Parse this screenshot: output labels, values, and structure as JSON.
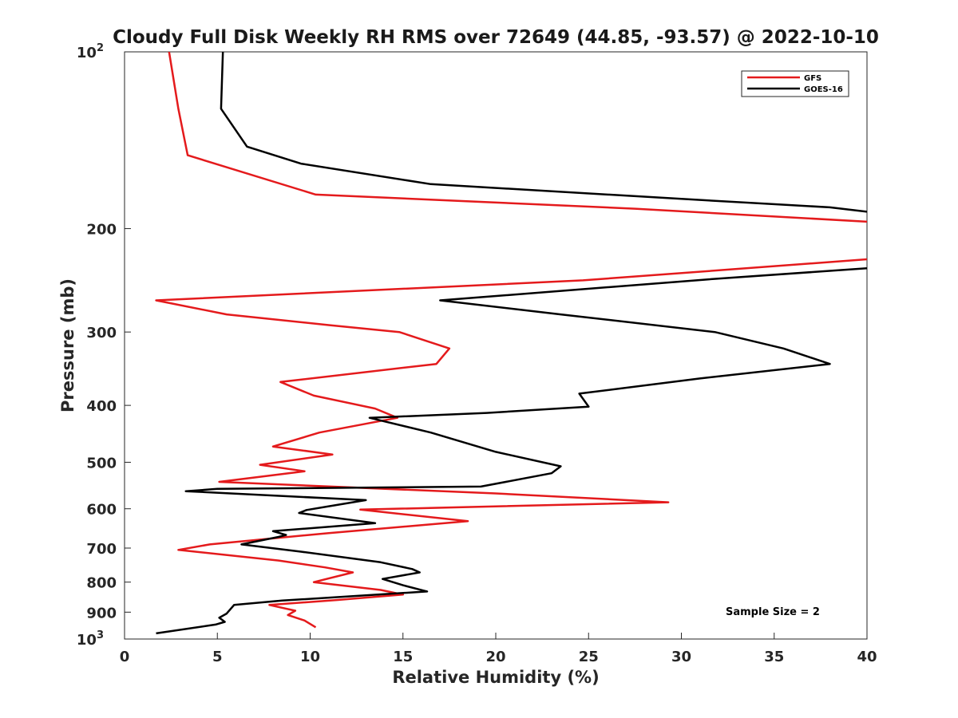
{
  "chart_data": {
    "type": "line",
    "title": "Cloudy Full Disk Weekly RH RMS over 72649 (44.85, -93.57) @ 2022-10-10",
    "xlabel": "Relative Humidity (%)",
    "ylabel": "Pressure (mb)",
    "xlim": [
      0,
      40
    ],
    "ylim": [
      100,
      1000
    ],
    "y_scale": "log",
    "y_reversed": true,
    "x_ticks": [
      0,
      5,
      10,
      15,
      20,
      25,
      30,
      35,
      40
    ],
    "y_ticks": [
      {
        "value": 100,
        "label": "10",
        "sup": "2"
      },
      {
        "value": 200,
        "label": "200",
        "sup": ""
      },
      {
        "value": 300,
        "label": "300",
        "sup": ""
      },
      {
        "value": 400,
        "label": "400",
        "sup": ""
      },
      {
        "value": 500,
        "label": "500",
        "sup": ""
      },
      {
        "value": 600,
        "label": "600",
        "sup": ""
      },
      {
        "value": 700,
        "label": "700",
        "sup": ""
      },
      {
        "value": 800,
        "label": "800",
        "sup": ""
      },
      {
        "value": 900,
        "label": "900",
        "sup": ""
      },
      {
        "value": 1000,
        "label": "10",
        "sup": "3"
      }
    ],
    "grid": false,
    "legend_position": "top-right",
    "annotation": "Sample Size = 2",
    "series": [
      {
        "name": "GFS",
        "color": "#e41a1c",
        "points": [
          [
            2.4,
            100
          ],
          [
            2.9,
            125
          ],
          [
            3.4,
            150
          ],
          [
            10.3,
            175
          ],
          [
            27.5,
            185
          ],
          [
            40.5,
            195
          ],
          [
            null,
            null
          ],
          [
            40.5,
            225
          ],
          [
            24.7,
            245
          ],
          [
            1.7,
            265
          ],
          [
            5.5,
            280
          ],
          [
            11.0,
            292
          ],
          [
            14.8,
            300
          ],
          [
            17.5,
            320
          ],
          [
            16.8,
            340
          ],
          [
            8.4,
            365
          ],
          [
            10.2,
            385
          ],
          [
            13.5,
            405
          ],
          [
            14.7,
            420
          ],
          [
            10.5,
            445
          ],
          [
            8.0,
            470
          ],
          [
            11.2,
            485
          ],
          [
            7.3,
            505
          ],
          [
            9.7,
            518
          ],
          [
            5.1,
            540
          ],
          [
            20.0,
            565
          ],
          [
            29.3,
            585
          ],
          [
            12.7,
            602
          ],
          [
            18.5,
            630
          ],
          [
            11.0,
            660
          ],
          [
            4.6,
            690
          ],
          [
            2.9,
            705
          ],
          [
            8.3,
            735
          ],
          [
            10.8,
            755
          ],
          [
            12.3,
            770
          ],
          [
            10.2,
            800
          ],
          [
            13.8,
            825
          ],
          [
            15.0,
            840
          ],
          [
            11.5,
            858
          ],
          [
            7.8,
            875
          ],
          [
            9.2,
            895
          ],
          [
            8.8,
            910
          ],
          [
            9.7,
            930
          ],
          [
            10.3,
            955
          ]
        ]
      },
      {
        "name": "GOES-16",
        "color": "#000000",
        "points": [
          [
            5.3,
            100
          ],
          [
            5.2,
            125
          ],
          [
            6.6,
            145
          ],
          [
            9.5,
            155
          ],
          [
            16.5,
            168
          ],
          [
            30.0,
            178
          ],
          [
            38.0,
            184
          ],
          [
            40.5,
            188
          ],
          [
            null,
            null
          ],
          [
            40.5,
            233
          ],
          [
            31.5,
            244
          ],
          [
            17.0,
            265
          ],
          [
            23.5,
            280
          ],
          [
            31.8,
            300
          ],
          [
            35.5,
            320
          ],
          [
            38.0,
            340
          ],
          [
            31.0,
            360
          ],
          [
            24.5,
            382
          ],
          [
            25.0,
            402
          ],
          [
            19.5,
            412
          ],
          [
            13.2,
            420
          ],
          [
            16.5,
            445
          ],
          [
            20.0,
            480
          ],
          [
            23.5,
            508
          ],
          [
            23.0,
            522
          ],
          [
            19.2,
            550
          ],
          [
            5.0,
            555
          ],
          [
            3.3,
            560
          ],
          [
            13.0,
            580
          ],
          [
            9.8,
            603
          ],
          [
            9.4,
            610
          ],
          [
            13.5,
            635
          ],
          [
            8.0,
            655
          ],
          [
            8.7,
            665
          ],
          [
            8.3,
            670
          ],
          [
            6.3,
            690
          ],
          [
            9.5,
            710
          ],
          [
            13.8,
            740
          ],
          [
            15.5,
            760
          ],
          [
            15.9,
            770
          ],
          [
            13.9,
            790
          ],
          [
            15.0,
            810
          ],
          [
            16.3,
            830
          ],
          [
            8.5,
            860
          ],
          [
            5.9,
            875
          ],
          [
            5.5,
            905
          ],
          [
            5.1,
            920
          ],
          [
            5.4,
            935
          ],
          [
            4.9,
            945
          ],
          [
            1.7,
            978
          ]
        ]
      }
    ]
  }
}
